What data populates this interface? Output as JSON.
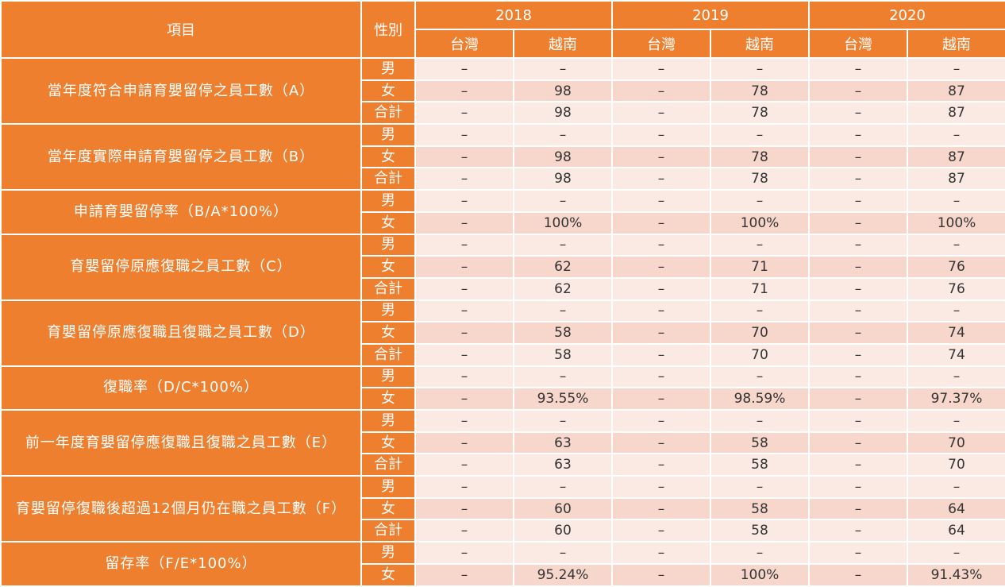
{
  "header": {
    "item_label": "項目",
    "gender_label": "性別",
    "years": [
      "2018",
      "2019",
      "2020"
    ],
    "regions": [
      "台灣",
      "越南",
      "台灣",
      "越南",
      "台灣",
      "越南"
    ]
  },
  "groups": [
    {
      "label": "當年度符合申請育嬰留停之員工數（A）",
      "rows": [
        {
          "gender": "男",
          "values": [
            "–",
            "–",
            "–",
            "–",
            "–",
            "–"
          ]
        },
        {
          "gender": "女",
          "values": [
            "–",
            "98",
            "–",
            "78",
            "–",
            "87"
          ]
        },
        {
          "gender": "合計",
          "values": [
            "–",
            "98",
            "–",
            "78",
            "–",
            "87"
          ]
        }
      ]
    },
    {
      "label": "當年度實際申請育嬰留停之員工數（B）",
      "rows": [
        {
          "gender": "男",
          "values": [
            "–",
            "–",
            "–",
            "–",
            "–",
            "–"
          ]
        },
        {
          "gender": "女",
          "values": [
            "–",
            "98",
            "–",
            "78",
            "–",
            "87"
          ]
        },
        {
          "gender": "合計",
          "values": [
            "–",
            "98",
            "–",
            "78",
            "–",
            "87"
          ]
        }
      ]
    },
    {
      "label": "申請育嬰留停率（B/A*100%）",
      "rows": [
        {
          "gender": "男",
          "values": [
            "–",
            "–",
            "–",
            "–",
            "–",
            "–"
          ]
        },
        {
          "gender": "女",
          "values": [
            "–",
            "100%",
            "–",
            "100%",
            "–",
            "100%"
          ]
        }
      ]
    },
    {
      "label": "育嬰留停原應復職之員工數（C）",
      "rows": [
        {
          "gender": "男",
          "values": [
            "–",
            "–",
            "–",
            "–",
            "–",
            "–"
          ]
        },
        {
          "gender": "女",
          "values": [
            "–",
            "62",
            "–",
            "71",
            "–",
            "76"
          ]
        },
        {
          "gender": "合計",
          "values": [
            "–",
            "62",
            "–",
            "71",
            "–",
            "76"
          ]
        }
      ]
    },
    {
      "label": "育嬰留停原應復職且復職之員工數（D）",
      "rows": [
        {
          "gender": "男",
          "values": [
            "–",
            "–",
            "–",
            "–",
            "–",
            "–"
          ]
        },
        {
          "gender": "女",
          "values": [
            "–",
            "58",
            "–",
            "70",
            "–",
            "74"
          ]
        },
        {
          "gender": "合計",
          "values": [
            "–",
            "58",
            "–",
            "70",
            "–",
            "74"
          ]
        }
      ]
    },
    {
      "label": "復職率（D/C*100%）",
      "rows": [
        {
          "gender": "男",
          "values": [
            "–",
            "–",
            "–",
            "–",
            "–",
            "–"
          ]
        },
        {
          "gender": "女",
          "values": [
            "–",
            "93.55%",
            "–",
            "98.59%",
            "–",
            "97.37%"
          ]
        }
      ]
    },
    {
      "label": "前一年度育嬰留停應復職且復職之員工數（E）",
      "rows": [
        {
          "gender": "男",
          "values": [
            "–",
            "–",
            "–",
            "–",
            "–",
            "–"
          ]
        },
        {
          "gender": "女",
          "values": [
            "–",
            "63",
            "–",
            "58",
            "–",
            "70"
          ]
        },
        {
          "gender": "合計",
          "values": [
            "–",
            "63",
            "–",
            "58",
            "–",
            "70"
          ]
        }
      ]
    },
    {
      "label": "育嬰留停復職後超過12個月仍在職之員工數（F）",
      "rows": [
        {
          "gender": "男",
          "values": [
            "–",
            "–",
            "–",
            "–",
            "–",
            "–"
          ]
        },
        {
          "gender": "女",
          "values": [
            "–",
            "60",
            "–",
            "58",
            "–",
            "64"
          ]
        },
        {
          "gender": "合計",
          "values": [
            "–",
            "60",
            "–",
            "58",
            "–",
            "64"
          ]
        }
      ]
    },
    {
      "label": "留存率（F/E*100%）",
      "rows": [
        {
          "gender": "男",
          "values": [
            "–",
            "–",
            "–",
            "–",
            "–",
            "–"
          ]
        },
        {
          "gender": "女",
          "values": [
            "–",
            "95.24%",
            "–",
            "100%",
            "–",
            "91.43%"
          ]
        }
      ]
    }
  ]
}
